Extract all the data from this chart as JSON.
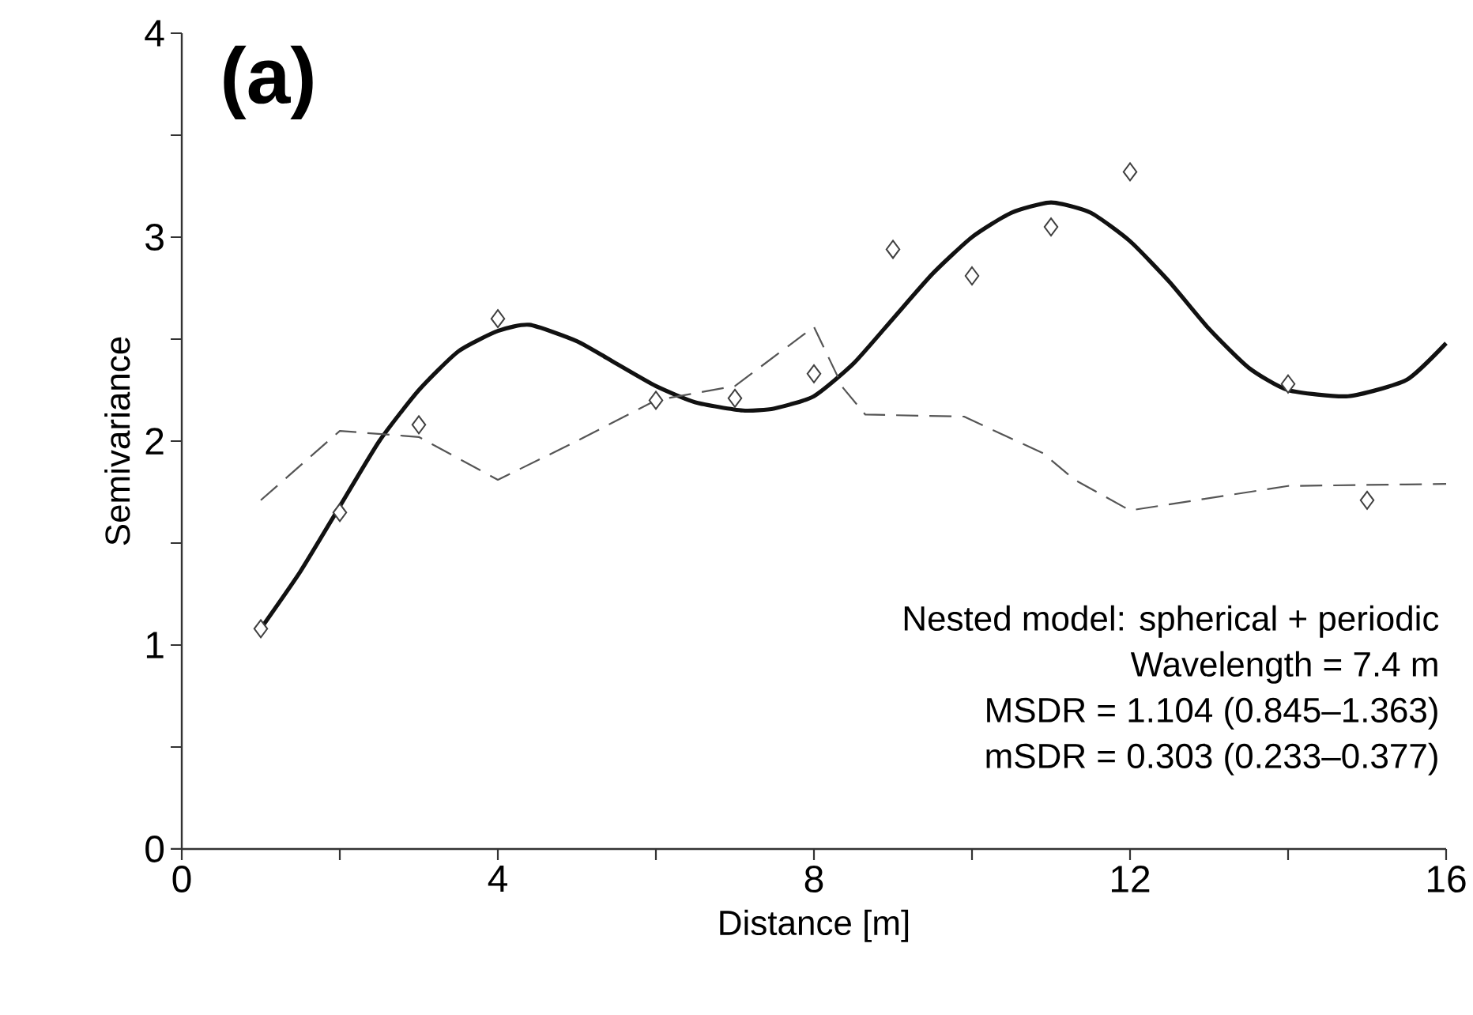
{
  "chart_data": {
    "type": "scatter",
    "xlabel": "Distance [m]",
    "ylabel": "Semivariance",
    "xlim": [
      0,
      16
    ],
    "ylim": [
      0,
      4
    ],
    "xticks": [
      0,
      {
        "value": 2,
        "label": null
      },
      4,
      {
        "value": 6,
        "label": null
      },
      8,
      {
        "value": 10,
        "label": null
      },
      12,
      {
        "value": 14,
        "label": null
      },
      16
    ],
    "yticks": [
      0,
      {
        "value": 0.5,
        "label": null
      },
      1,
      {
        "value": 1.5,
        "label": null
      },
      2,
      {
        "value": 2.5,
        "label": null
      },
      3,
      {
        "value": 3.5,
        "label": null
      },
      4
    ],
    "annotations": [
      "(a)",
      "Nested model: spherical + periodic",
      "Wavelength = 7.4 m",
      "MSDR = 1.104 (0.845–1.363)",
      "mSDR = 0.303 (0.233–0.377)"
    ],
    "series": [
      {
        "marker": "diamond",
        "color": "#404040",
        "x": [
          1,
          2,
          3,
          4,
          6,
          7,
          8,
          9,
          10,
          11,
          12,
          14,
          15
        ],
        "values": [
          1.08,
          1.65,
          2.08,
          2.6,
          2.2,
          2.21,
          2.33,
          2.94,
          2.81,
          3.05,
          3.32,
          2.28,
          1.71
        ]
      },
      {
        "type": "line",
        "line_style": "solid",
        "color": "#111111",
        "x": [
          1,
          1.5,
          2,
          2.5,
          3,
          3.5,
          4,
          4.4,
          5,
          5.5,
          6,
          6.5,
          7.1,
          7.5,
          8,
          8.5,
          9,
          9.5,
          10,
          10.5,
          11,
          11.5,
          12,
          12.5,
          13,
          13.5,
          14,
          14.76,
          15.5,
          16
        ],
        "values": [
          1.08,
          1.36,
          1.68,
          2.0,
          2.25,
          2.44,
          2.54,
          2.57,
          2.49,
          2.38,
          2.27,
          2.19,
          2.15,
          2.16,
          2.22,
          2.38,
          2.6,
          2.82,
          3.0,
          3.12,
          3.17,
          3.12,
          2.98,
          2.78,
          2.55,
          2.36,
          2.25,
          2.22,
          2.3,
          2.48
        ]
      },
      {
        "type": "line",
        "line_style": "dashed",
        "color": "#555555",
        "x": [
          1,
          2,
          3,
          4,
          5,
          6,
          7,
          8,
          8.37,
          8.65,
          9.9,
          10.9,
          11.3,
          12,
          13,
          14,
          16
        ],
        "values": [
          1.71,
          2.05,
          2.02,
          1.81,
          2.0,
          2.2,
          2.27,
          2.56,
          2.26,
          2.13,
          2.12,
          1.94,
          1.81,
          1.66,
          1.72,
          1.78,
          1.79
        ]
      }
    ]
  }
}
